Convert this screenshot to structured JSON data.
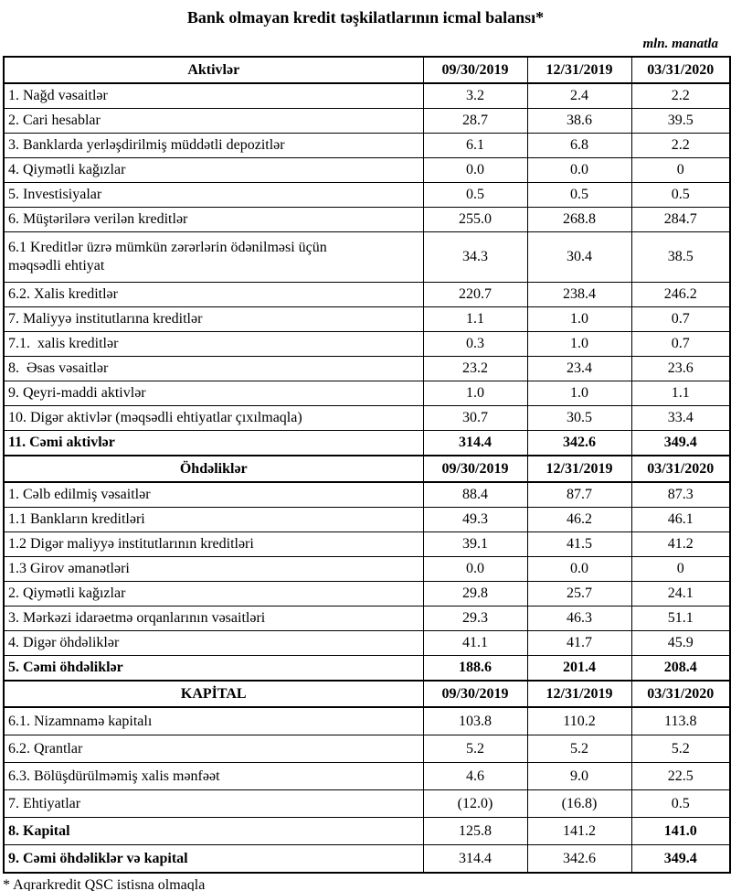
{
  "title": "Bank olmayan kredit təşkilatlarının icmal balansı*",
  "unit_note": "mln. manatla",
  "footnote": "* Aqrarkredit QSC istisna olmaqla",
  "colors": {
    "text": "#000000",
    "border": "#000000",
    "background": "#ffffff"
  },
  "columns": [
    "09/30/2019",
    "12/31/2019",
    "03/31/2020"
  ],
  "sections": [
    {
      "header": "Aktivlər",
      "rows": [
        {
          "label": "1. Nağd vəsaitlər",
          "values": [
            "3.2",
            "2.4",
            "2.2"
          ]
        },
        {
          "label": "2. Cari hesablar",
          "values": [
            "28.7",
            "38.6",
            "39.5"
          ]
        },
        {
          "label": "3. Banklarda yerləşdirilmiş müddətli depozitlər",
          "values": [
            "6.1",
            "6.8",
            "2.2"
          ]
        },
        {
          "label": "4. Qiymətli kağızlar",
          "values": [
            "0.0",
            "0.0",
            "0"
          ]
        },
        {
          "label": "5. Investisiyalar",
          "values": [
            "0.5",
            "0.5",
            "0.5"
          ]
        },
        {
          "label": "6. Müştərilərə verilən kreditlər",
          "values": [
            "255.0",
            "268.8",
            "284.7"
          ]
        },
        {
          "label": "6.1 Kreditlər üzrə mümkün zərərlərin ödənilməsi üçün\nməqsədli ehtiyat",
          "values": [
            "34.3",
            "30.4",
            "38.5"
          ],
          "tall": true
        },
        {
          "label": "6.2. Xalis kreditlər",
          "values": [
            "220.7",
            "238.4",
            "246.2"
          ]
        },
        {
          "label": "7. Maliyyə institutlarına kreditlər",
          "values": [
            "1.1",
            "1.0",
            "0.7"
          ]
        },
        {
          "label": "7.1.  xalis kreditlər",
          "values": [
            "0.3",
            "1.0",
            "0.7"
          ]
        },
        {
          "label": "8.  Əsas vəsaitlər",
          "values": [
            "23.2",
            "23.4",
            "23.6"
          ]
        },
        {
          "label": "9. Qeyri-maddi aktivlər",
          "values": [
            "1.0",
            "1.0",
            "1.1"
          ]
        },
        {
          "label": "10. Digər aktivlər (məqsədli ehtiyatlar çıxılmaqla)",
          "values": [
            "30.7",
            "30.5",
            "33.4"
          ]
        },
        {
          "label": "11. Cəmi aktivlər",
          "values": [
            "314.4",
            "342.6",
            "349.4"
          ],
          "bold": true
        }
      ]
    },
    {
      "header": "Öhdəliklər",
      "rows": [
        {
          "label": "1. Cəlb edilmiş vəsaitlər",
          "values": [
            "88.4",
            "87.7",
            "87.3"
          ]
        },
        {
          "label": "1.1 Bankların kreditləri",
          "values": [
            "49.3",
            "46.2",
            "46.1"
          ]
        },
        {
          "label": "1.2 Digər maliyyə institutlarının kreditləri",
          "values": [
            "39.1",
            "41.5",
            "41.2"
          ]
        },
        {
          "label": "1.3 Girov əmanətləri",
          "values": [
            "0.0",
            "0.0",
            "0"
          ]
        },
        {
          "label": "2. Qiymətli kağızlar",
          "values": [
            "29.8",
            "25.7",
            "24.1"
          ]
        },
        {
          "label": "3. Mərkəzi idarəetmə orqanlarının vəsaitləri",
          "values": [
            "29.3",
            "46.3",
            "51.1"
          ]
        },
        {
          "label": "4. Digər öhdəliklər",
          "values": [
            "41.1",
            "41.7",
            "45.9"
          ]
        },
        {
          "label": "5. Cəmi öhdəliklər",
          "values": [
            "188.6",
            "201.4",
            "208.4"
          ],
          "bold": true
        }
      ]
    },
    {
      "header": "KAPİTAL",
      "rows": [
        {
          "label": "6.1. Nizamnamə kapitalı",
          "values": [
            "103.8",
            "110.2",
            "113.8"
          ]
        },
        {
          "label": "6.2. Qrantlar",
          "values": [
            "5.2",
            "5.2",
            "5.2"
          ]
        },
        {
          "label": "6.3. Bölüşdürülməmiş xalis mənfəət",
          "values": [
            "4.6",
            "9.0",
            "22.5"
          ]
        },
        {
          "label": "7. Ehtiyatlar",
          "values": [
            "(12.0)",
            "(16.8)",
            "0.5"
          ]
        },
        {
          "label": "8. Kapital",
          "values": [
            "125.8",
            "141.2",
            "141.0"
          ],
          "label_bold": true,
          "values_bold": [
            false,
            false,
            true
          ]
        },
        {
          "label": "9. Cəmi öhdəliklər və kapital",
          "values": [
            "314.4",
            "342.6",
            "349.4"
          ],
          "label_bold": true,
          "values_bold": [
            false,
            false,
            true
          ]
        }
      ]
    }
  ]
}
